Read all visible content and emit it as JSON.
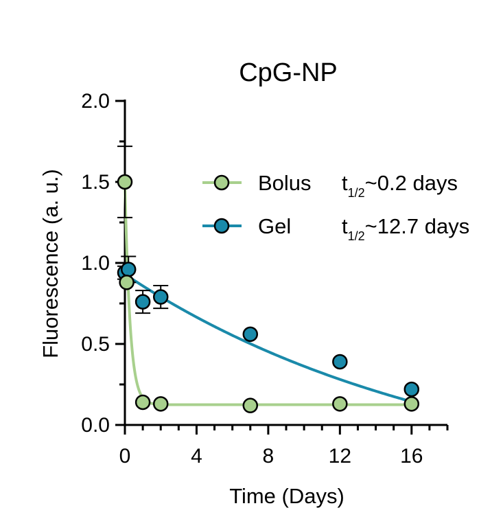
{
  "chart_data": {
    "type": "scatter",
    "title": "CpG-NP",
    "xlabel": "Time (Days)",
    "ylabel": "Fluorescence (a. u.)",
    "xlim": [
      0,
      18
    ],
    "ylim": [
      0,
      2.0
    ],
    "x_ticks": [
      0,
      4,
      8,
      12,
      16
    ],
    "x_tick_labels": [
      "0",
      "4",
      "8",
      "12",
      "16"
    ],
    "y_ticks": [
      0,
      0.5,
      1.0,
      1.5,
      2.0
    ],
    "y_tick_labels": [
      "0.0",
      "0.5",
      "1.0",
      "1.5",
      "2.0"
    ],
    "legend_position": "top-right",
    "series": [
      {
        "name": "Bolus",
        "half_life_label": "~0.2 days",
        "color": "#a8d08d",
        "line_color": "#a8d08d",
        "points": [
          {
            "x": 0,
            "y": 1.5,
            "err": 0.22
          },
          {
            "x": 0.1,
            "y": 0.88,
            "err": 0
          },
          {
            "x": 1,
            "y": 0.14,
            "err": 0
          },
          {
            "x": 2,
            "y": 0.13,
            "err": 0
          },
          {
            "x": 7,
            "y": 0.12,
            "err": 0
          },
          {
            "x": 12,
            "y": 0.13,
            "err": 0
          },
          {
            "x": 16,
            "y": 0.13,
            "err": 0
          }
        ],
        "fit": {
          "model": "one-phase-decay",
          "y0": 1.5,
          "plateau": 0.125,
          "half_life": 0.2
        }
      },
      {
        "name": "Gel",
        "half_life_label": "~12.7 days",
        "color": "#1a8aaa",
        "line_color": "#1a8aaa",
        "points": [
          {
            "x": 0,
            "y": 0.94,
            "err": 0.04
          },
          {
            "x": 0.2,
            "y": 0.96,
            "err": 0.08
          },
          {
            "x": 1,
            "y": 0.76,
            "err": 0.07
          },
          {
            "x": 2,
            "y": 0.79,
            "err": 0.07
          },
          {
            "x": 7,
            "y": 0.56,
            "err": 0
          },
          {
            "x": 12,
            "y": 0.39,
            "err": 0
          },
          {
            "x": 16,
            "y": 0.22,
            "err": 0
          }
        ],
        "fit": {
          "model": "one-phase-decay",
          "y0": 0.93,
          "plateau": -0.42,
          "half_life": 12.7
        }
      }
    ],
    "half_life_symbol": "t",
    "half_life_subscript": "1/2"
  }
}
